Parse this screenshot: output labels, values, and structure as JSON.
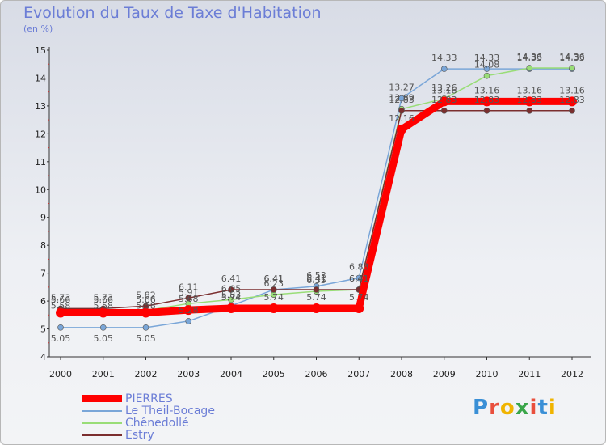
{
  "header": {
    "title": "Evolution du Taux de Taxe d'Habitation",
    "unit": "(en %)"
  },
  "logo": {
    "text": "Proxiti",
    "colors": [
      "#3a8fd6",
      "#e94f3d",
      "#f0b400",
      "#3aa64a",
      "#e94f3d",
      "#3a8fd6",
      "#f0b400"
    ]
  },
  "chart_data": {
    "type": "line",
    "x": [
      2000,
      2001,
      2002,
      2003,
      2004,
      2005,
      2006,
      2007,
      2008,
      2009,
      2010,
      2011,
      2012
    ],
    "yticks": [
      4,
      5,
      6,
      7,
      8,
      9,
      10,
      11,
      12,
      13,
      14,
      15
    ],
    "ylim": [
      4,
      15
    ],
    "grid": false,
    "legend": "bottom-left",
    "series": [
      {
        "name": "PIERRES",
        "color": "#ff0000",
        "values": [
          5.58,
          5.58,
          5.58,
          5.68,
          5.74,
          5.74,
          5.74,
          5.74,
          12.16,
          13.16,
          13.16,
          13.16,
          13.16
        ],
        "labels": [
          "5.58",
          "5.58",
          "5.58",
          "5.68",
          "5.74",
          "5.74",
          "5.74",
          "5.74",
          "12.16",
          "13.16",
          "13.16",
          "13.16",
          "13.16"
        ]
      },
      {
        "name": "Le Theil-Bocage",
        "color": "#7aa6d8",
        "values": [
          5.05,
          5.05,
          5.05,
          5.28,
          5.83,
          6.41,
          6.53,
          6.83,
          13.27,
          14.33,
          14.33,
          14.33,
          14.33
        ],
        "labels": [
          "5.05",
          "5.05",
          "5.05",
          "5.28",
          "5.83",
          "6.41",
          "6.53",
          "6.83",
          "13.27",
          "14.33",
          "14.33",
          "14.33",
          "14.33"
        ]
      },
      {
        "name": "Chênedollé",
        "color": "#99dd77",
        "values": [
          5.66,
          5.66,
          5.66,
          5.91,
          6.05,
          6.23,
          6.35,
          6.41,
          12.89,
          13.26,
          14.08,
          14.36,
          14.36
        ],
        "labels": [
          "5.66",
          "5.66",
          "5.66",
          "5.91",
          "6.05",
          "6.23",
          "6.35",
          "6.41",
          "12.89",
          "13.26",
          "14.08",
          "14.36",
          "14.36"
        ]
      },
      {
        "name": "Estry",
        "color": "#7b2e2e",
        "values": [
          5.73,
          5.73,
          5.82,
          6.11,
          6.41,
          6.41,
          6.41,
          6.41,
          12.83,
          12.83,
          12.83,
          12.83,
          12.83
        ],
        "labels": [
          "5.73",
          "5.73",
          "5.82",
          "6.11",
          "6.41",
          "6.41",
          "6.41",
          "6.41",
          "12.83",
          "12.83",
          "12.83",
          "12.83",
          "12.83"
        ]
      }
    ]
  }
}
